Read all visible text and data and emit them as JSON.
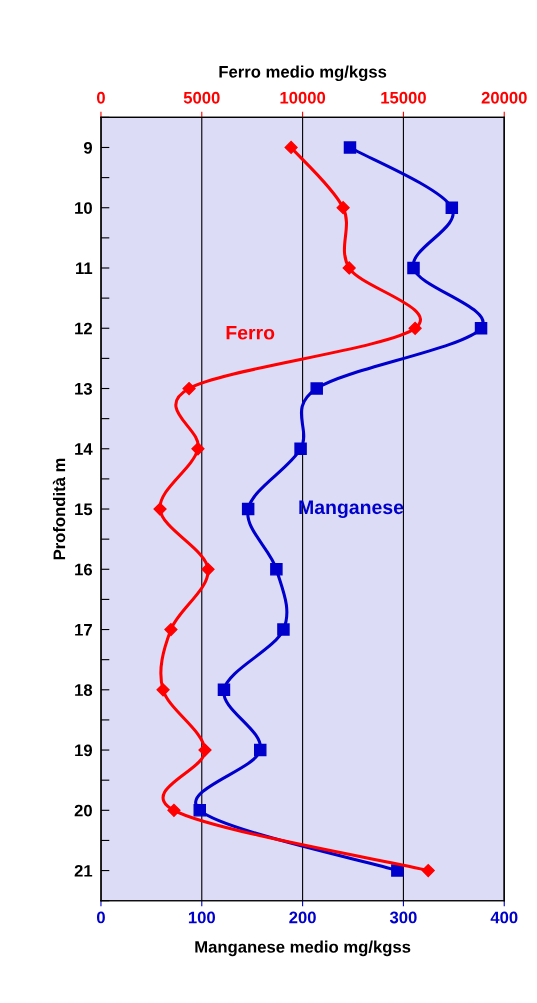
{
  "chart_data": {
    "type": "line",
    "xlabel": "Manganese medio mg/kgss",
    "x2label": "Ferro medio mg/kgss",
    "ylabel": "Profondità m",
    "xlim": [
      0,
      400
    ],
    "xticks": [
      0,
      100,
      200,
      300,
      400
    ],
    "x2lim": [
      0,
      20000
    ],
    "x2ticks": [
      0,
      5000,
      10000,
      15000,
      20000
    ],
    "ylim": [
      21.5,
      8.5
    ],
    "yticks": [
      {
        "value": 8.5,
        "label": null
      },
      9,
      {
        "value": 9.5,
        "label": null
      },
      10,
      {
        "value": 10.5,
        "label": null
      },
      11,
      {
        "value": 11.5,
        "label": null
      },
      12,
      {
        "value": 12.5,
        "label": null
      },
      13,
      {
        "value": 13.5,
        "label": null
      },
      14,
      {
        "value": 14.5,
        "label": null
      },
      15,
      {
        "value": 15.5,
        "label": null
      },
      16,
      {
        "value": 16.5,
        "label": null
      },
      17,
      {
        "value": 17.5,
        "label": null
      },
      18,
      {
        "value": 18.5,
        "label": null
      },
      19,
      {
        "value": 19.5,
        "label": null
      },
      20,
      {
        "value": 20.5,
        "label": null
      },
      21,
      {
        "value": 21.5,
        "label": null
      }
    ],
    "grid": "x",
    "legend": false,
    "series": [
      {
        "name": "Ferro",
        "color": "#ff0000",
        "axis": "x2",
        "marker": "diamond",
        "x": [
          9430,
          12010,
          12310,
          15580,
          4370,
          4810,
          2930,
          5310,
          3470,
          3080,
          5160,
          3620,
          16230
        ],
        "values": [
          9,
          10,
          11,
          12,
          13,
          14,
          15,
          16,
          17,
          18,
          19,
          20,
          21
        ]
      },
      {
        "name": "Manganese",
        "color": "#0000cc",
        "marker": "square",
        "x": [
          247,
          348,
          310,
          377,
          214,
          198,
          146,
          174,
          181,
          122,
          158,
          98,
          294
        ],
        "values": [
          9,
          10,
          11,
          12,
          13,
          14,
          15,
          16,
          17,
          18,
          19,
          20,
          21
        ]
      }
    ]
  }
}
